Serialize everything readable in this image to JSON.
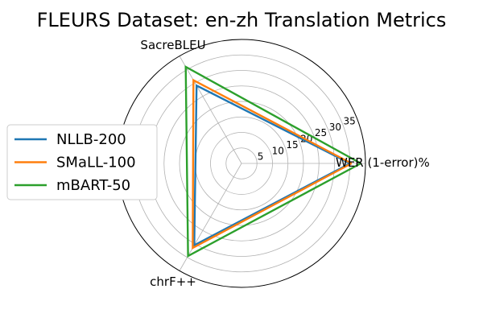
{
  "chart_data": {
    "type": "radar",
    "title": "FLEURS Dataset: en-zh Translation Metrics",
    "axes": [
      "WER (1-error)%",
      "SacreBLEU",
      "chrF++"
    ],
    "rlim": [
      0,
      40
    ],
    "rticks": [
      5,
      10,
      15,
      20,
      25,
      30,
      35
    ],
    "grid": true,
    "legend_position": "left",
    "series": [
      {
        "name": "NLLB-200",
        "color": "#1f77b4",
        "values": [
          35.0,
          29.0,
          30.5
        ]
      },
      {
        "name": "SMaLL-100",
        "color": "#ff7f0e",
        "values": [
          35.5,
          31.0,
          31.5
        ]
      },
      {
        "name": "mBART-50",
        "color": "#2ca02c",
        "values": [
          38.5,
          36.0,
          34.5
        ]
      }
    ]
  }
}
